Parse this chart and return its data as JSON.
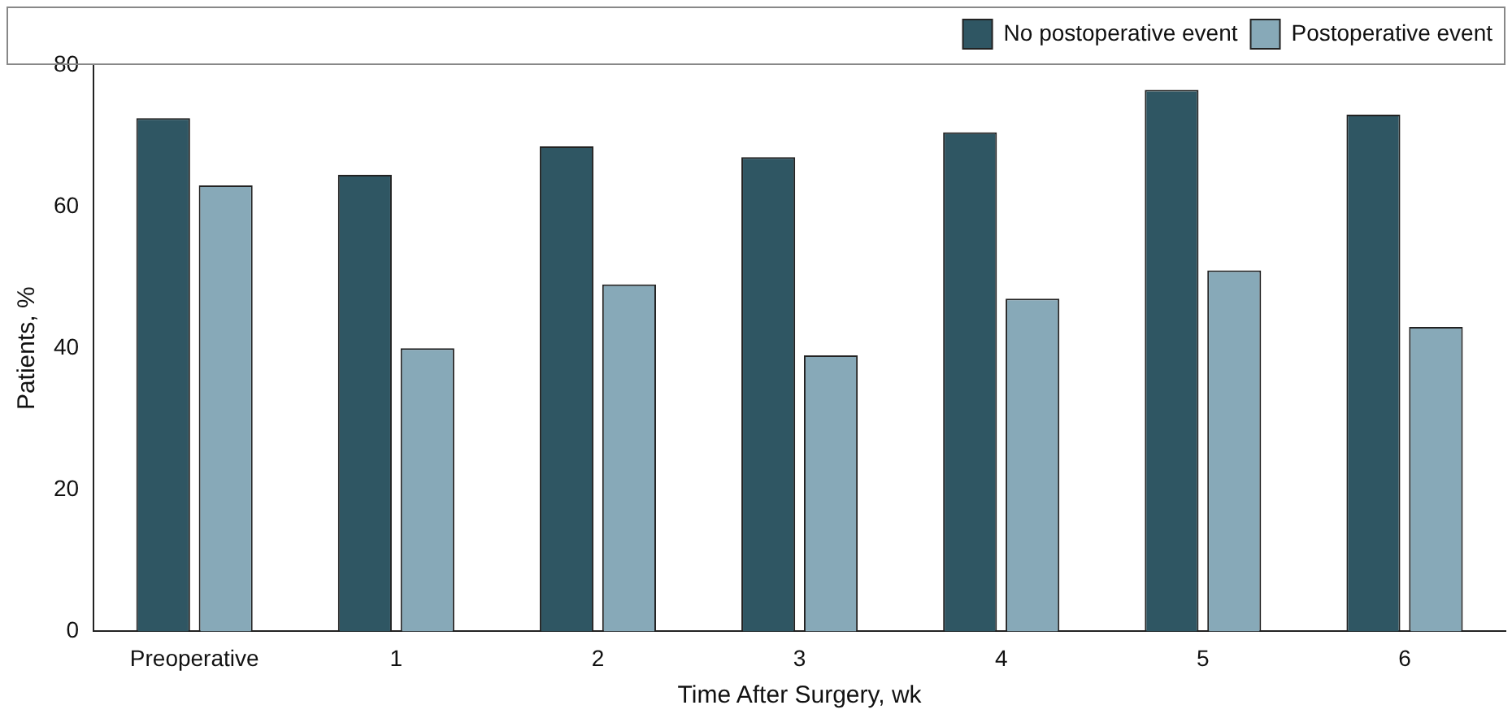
{
  "chart_data": {
    "type": "bar",
    "xlabel": "Time After Surgery, wk",
    "ylabel": "Patients, %",
    "categories": [
      "Preoperative",
      "1",
      "2",
      "3",
      "4",
      "5",
      "6"
    ],
    "series": [
      {
        "name": "No postoperative event",
        "color": "#2f5663",
        "values": [
          72.5,
          64.5,
          68.5,
          67,
          70.5,
          76.5,
          73
        ]
      },
      {
        "name": "Postoperative event",
        "color": "#87a9b8",
        "values": [
          63,
          40,
          49,
          39,
          47,
          51,
          43
        ]
      }
    ],
    "ylim": [
      0,
      80
    ],
    "yticks": [
      0,
      20,
      40,
      60,
      80
    ],
    "grid": false,
    "legend": "top right"
  }
}
